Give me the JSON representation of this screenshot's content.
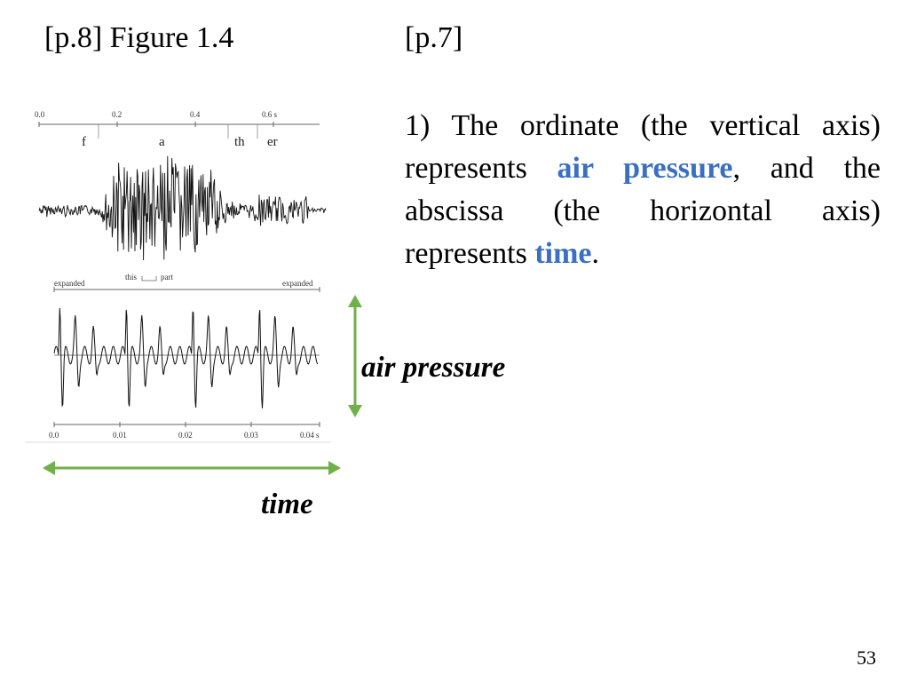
{
  "slide": {
    "left_heading": "[p.8]  Figure 1.4",
    "right_heading": "[p.7]",
    "body": {
      "part1": "1) The ordinate (the vertical axis) represents ",
      "highlight1": "air pressure",
      "part2": ", and the abscissa (the horizontal axis) represents ",
      "highlight2": "time",
      "part3": "."
    },
    "vertical_axis_label": "air pressure",
    "horizontal_axis_label": "time",
    "page_number": "53",
    "highlight_color": "#3a6fc4",
    "arrow_color": "#6fb04a"
  },
  "figure": {
    "top_axis_ticks": [
      "0.0",
      "0.2",
      "0.4",
      "0.6 s"
    ],
    "segments": [
      "f",
      "a",
      "th",
      "er"
    ],
    "expanded_left": "expanded",
    "expanded_right": "expanded",
    "this_label": "this",
    "part_label": "part",
    "bottom_axis_ticks": [
      "0.0",
      "0.01",
      "0.02",
      "0.03",
      "0.04 s"
    ]
  }
}
